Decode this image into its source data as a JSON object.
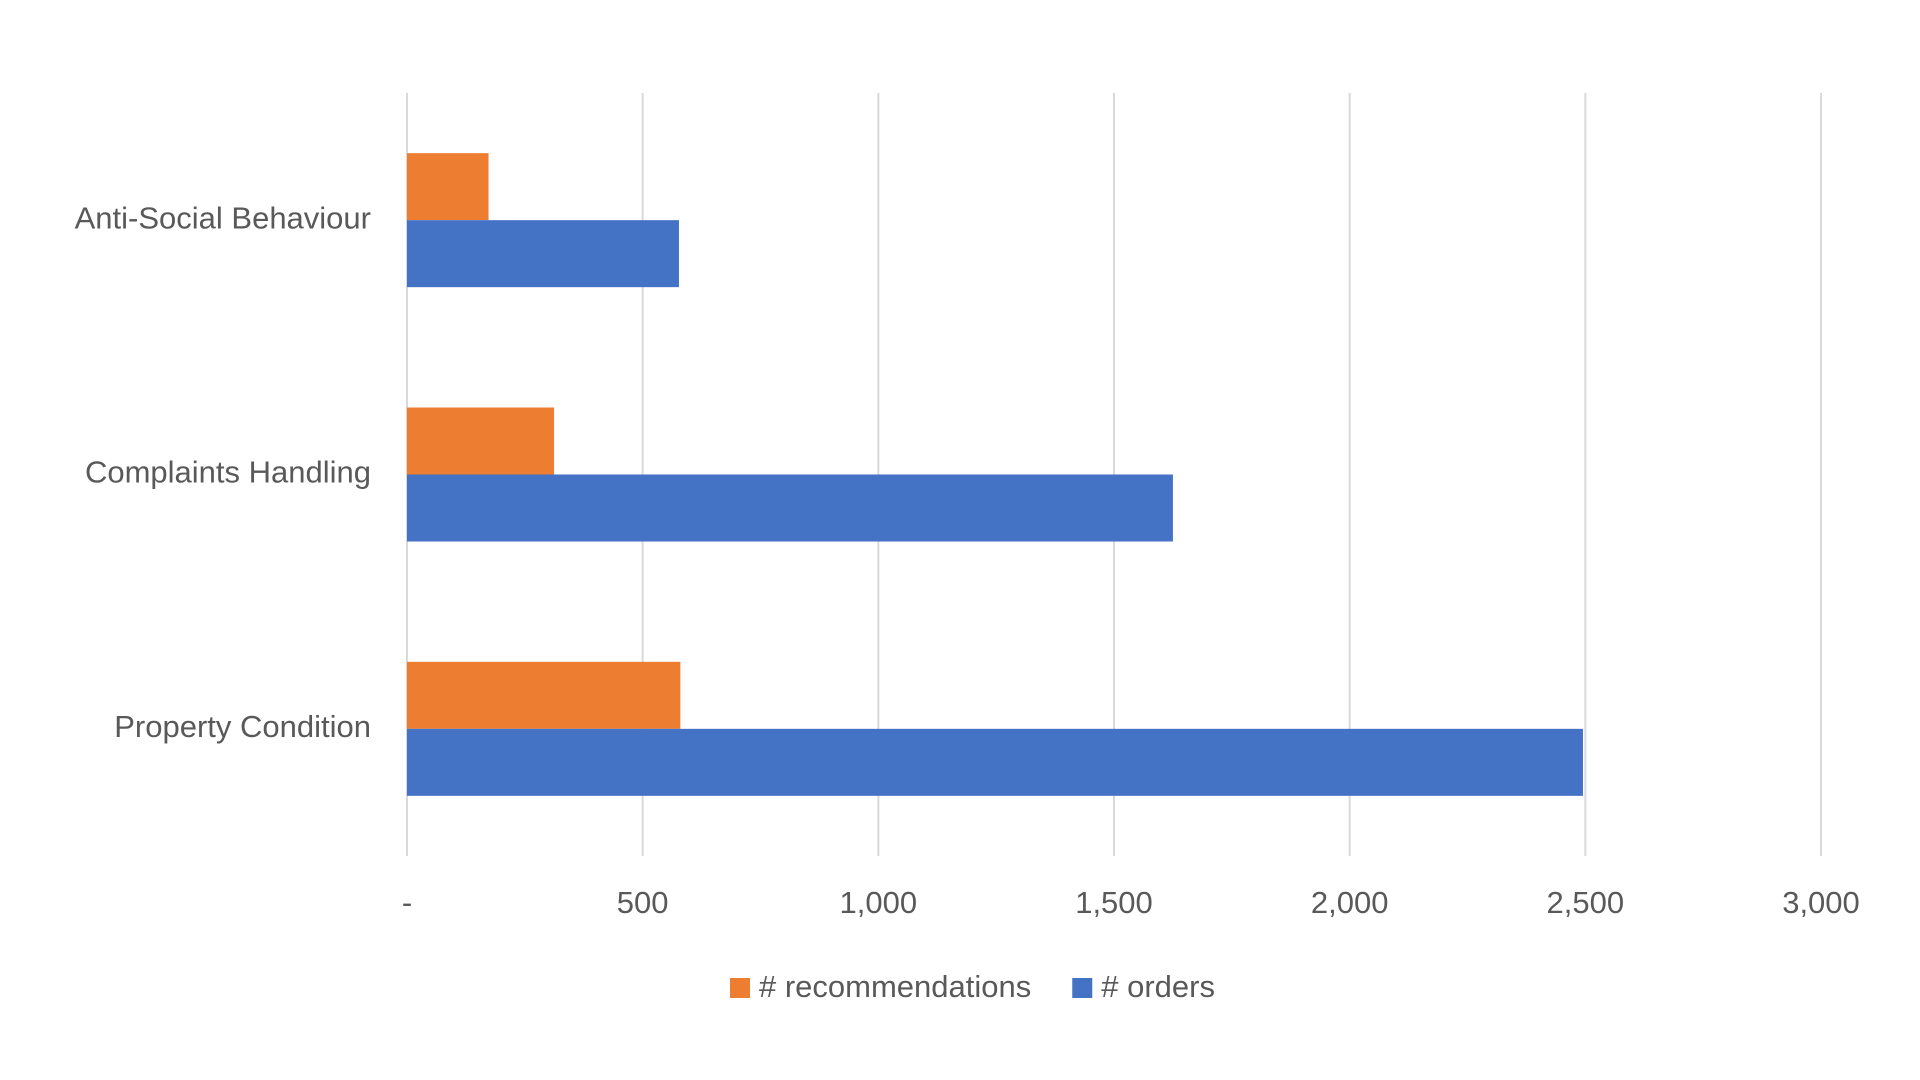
{
  "chart_data": {
    "type": "hbar",
    "categories": [
      "Anti-Social Behaviour",
      "Complaints Handling",
      "Property Condition"
    ],
    "series": [
      {
        "name": "# recommendations",
        "color": "#ed7d31",
        "values": [
          173,
          312,
          580
        ]
      },
      {
        "name": "# orders",
        "color": "#4472c4",
        "values": [
          577,
          1625,
          2495
        ]
      }
    ],
    "xlim": [
      0,
      3000
    ],
    "xticks": [
      {
        "value": 0,
        "label": "-"
      },
      500,
      {
        "value": 1000,
        "label": "1,000"
      },
      {
        "value": 1500,
        "label": "1,500"
      },
      {
        "value": 2000,
        "label": "2,000"
      },
      {
        "value": 2500,
        "label": "2,500"
      },
      {
        "value": 3000,
        "label": "3,000"
      }
    ],
    "grid": true,
    "legend": "bottom"
  }
}
